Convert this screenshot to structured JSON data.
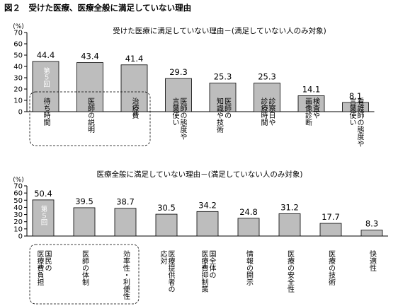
{
  "figure_title": "図２　受けた医療、医療全般に満足していない理由",
  "colors": {
    "bar_fill": "#bdbdbd",
    "bar_stroke": "#000000",
    "dashed": "#000000"
  },
  "chart_data": [
    {
      "type": "bar",
      "title": "受けた医療に満足していない理由－(満足していない人のみ対象)",
      "ylabel": "(%)",
      "ylim": [
        0,
        70
      ],
      "yticks": [
        "0",
        "10",
        "20",
        "30",
        "40",
        "50",
        "60",
        "70"
      ],
      "grid": false,
      "categories": [
        "待ち時間",
        "医師の説明",
        "治療費",
        "医師の態度や言葉使い",
        "医師の知識や技術",
        "診察日や診療時間",
        "検査や画像診断",
        "看護師の態度や言葉使い"
      ],
      "category_columns": [
        [
          "待ち時間"
        ],
        [
          "医師の説明"
        ],
        [
          "治療費"
        ],
        [
          "医師の態度や",
          "言葉使い"
        ],
        [
          "医師の",
          "知識や技術"
        ],
        [
          "診察日や",
          "診療時間"
        ],
        [
          "検査や",
          "画像診断"
        ],
        [
          "看護師の態度や",
          "言葉使い"
        ]
      ],
      "values": [
        44.4,
        43.4,
        41.4,
        29.3,
        25.3,
        25.3,
        14.1,
        8.1
      ],
      "value_labels": [
        "44.4",
        "43.4",
        "41.4",
        "29.3",
        "25.3",
        "25.3",
        "14.1",
        "8.1"
      ],
      "annotation": {
        "text": "第５回",
        "bar_index": 0
      },
      "highlight_group": [
        0,
        1,
        2
      ]
    },
    {
      "type": "bar",
      "title": "医療全般に満足していない理由－(満足していない人のみ対象)",
      "ylabel": "(%)",
      "ylim": [
        0,
        70
      ],
      "yticks": [
        "0",
        "10",
        "20",
        "30",
        "40",
        "50",
        "60",
        "70"
      ],
      "grid": false,
      "categories": [
        "国民の医療費負担",
        "医師の体制",
        "効率性・利便性",
        "医療提供者の応対",
        "国全体の医療費抑制策",
        "情報の開示",
        "医療の安全性",
        "医療の技術",
        "快適性"
      ],
      "category_columns": [
        [
          "国民の",
          "医療費負担"
        ],
        [
          "医師の体制"
        ],
        [
          "効率性・利便性"
        ],
        [
          "医療提供者の",
          "応対"
        ],
        [
          "国全体の",
          "医療費抑制策"
        ],
        [
          "情報の開示"
        ],
        [
          "医療の安全性"
        ],
        [
          "医療の技術"
        ],
        [
          "快適性"
        ]
      ],
      "values": [
        50.4,
        39.5,
        38.7,
        30.5,
        34.2,
        24.8,
        31.2,
        17.7,
        8.3
      ],
      "value_labels": [
        "50.4",
        "39.5",
        "38.7",
        "30.5",
        "34.2",
        "24.8",
        "31.2",
        "17.7",
        "8.3"
      ],
      "annotation": {
        "text": "第５回",
        "bar_index": 0
      },
      "highlight_group": [
        0,
        1,
        2
      ]
    }
  ]
}
